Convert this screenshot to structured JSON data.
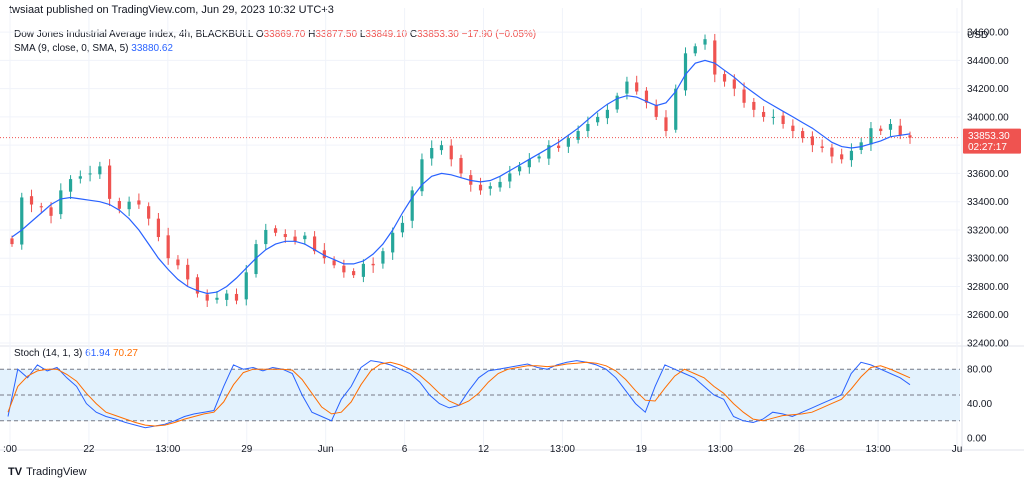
{
  "header": {
    "published_by": "twsiaat published on TradingView.com, Jun 29, 2023 10:32 UTC+3"
  },
  "legend": {
    "symbol": "Dow Jones Industrial Average Index, 4h, BLACKBULL",
    "o_label": "O",
    "o": "33869.70",
    "h_label": "H",
    "h": "33877.50",
    "l_label": "L",
    "l": "33849.10",
    "c_label": "C",
    "c": "33853.30",
    "change": "−17.90 (−0.05%)",
    "sma_label": "SMA (9, close, 0, SMA, 5)",
    "sma_value": "33880.62"
  },
  "price_badge": {
    "price": "33853.30",
    "countdown": "02:27:17"
  },
  "stoch_legend": {
    "label": "Stoch (14, 1, 3)",
    "k": "61.94",
    "d": "70.27"
  },
  "footer": {
    "brand": "TradingView"
  },
  "colors": {
    "up": "#26a69a",
    "down": "#ef5350",
    "sma": "#2962ff",
    "stoch_k": "#2962ff",
    "stoch_d": "#ff6d00",
    "band_fill": "#e3f2fd"
  },
  "chart_data": [
    {
      "type": "candlestick",
      "title": "",
      "currency": "USD",
      "y_ticks": [
        "34600.00",
        "34400.00",
        "34200.00",
        "34000.00",
        "33800.00",
        "33600.00",
        "33400.00",
        "33200.00",
        "33000.00",
        "32800.00",
        "32600.00",
        "32400.00"
      ],
      "ylim": [
        32400,
        34700
      ],
      "x_ticks": [
        ":00",
        "22",
        "13:00",
        "29",
        "Jun",
        "6",
        "12",
        "13:00",
        "19",
        "13:00",
        "26",
        "13:00",
        "Ju"
      ],
      "close_path": [
        33100,
        33430,
        33380,
        33360,
        33300,
        33480,
        33560,
        33580,
        33600,
        33650,
        33420,
        33350,
        33400,
        33380,
        33280,
        33150,
        33000,
        32950,
        32850,
        32750,
        32700,
        32720,
        32750,
        32700,
        32900,
        33100,
        33200,
        33180,
        33150,
        33120,
        33160,
        33050,
        33000,
        32950,
        32900,
        32880,
        32960,
        32950,
        33050,
        33180,
        33250,
        33480,
        33700,
        33780,
        33800,
        33700,
        33600,
        33520,
        33480,
        33510,
        33540,
        33600,
        33650,
        33700,
        33720,
        33800,
        33780,
        33850,
        33900,
        33950,
        34000,
        34050,
        34150,
        34250,
        34180,
        34100,
        34000,
        33900,
        34200,
        34450,
        34500,
        34550,
        34300,
        34250,
        34200,
        34100,
        34050,
        34000,
        34000,
        33950,
        33900,
        33850,
        33800,
        33780,
        33720,
        33700,
        33760,
        33820,
        33920,
        33900,
        33950,
        33870,
        33853
      ],
      "sma_path": [
        33150,
        33200,
        33260,
        33320,
        33380,
        33420,
        33430,
        33420,
        33410,
        33400,
        33380,
        33340,
        33280,
        33200,
        33100,
        33000,
        32920,
        32850,
        32800,
        32770,
        32750,
        32760,
        32800,
        32860,
        32930,
        33000,
        33060,
        33100,
        33120,
        33120,
        33100,
        33060,
        33020,
        32990,
        32960,
        32960,
        32980,
        33030,
        33100,
        33200,
        33320,
        33430,
        33520,
        33580,
        33600,
        33590,
        33570,
        33550,
        33540,
        33550,
        33580,
        33620,
        33660,
        33700,
        33740,
        33780,
        33820,
        33870,
        33920,
        33980,
        34040,
        34090,
        34130,
        34150,
        34140,
        34110,
        34080,
        34100,
        34180,
        34300,
        34380,
        34400,
        34380,
        34330,
        34280,
        34220,
        34170,
        34120,
        34080,
        34040,
        34000,
        33960,
        33920,
        33870,
        33820,
        33790,
        33780,
        33790,
        33810,
        33830,
        33860,
        33870,
        33880
      ],
      "last_price": 33853.3,
      "last_countdown": "02:27:17"
    },
    {
      "type": "line",
      "title": "Stoch (14, 1, 3)",
      "ylim": [
        0,
        100
      ],
      "y_ticks": [
        "80.00",
        "40.00",
        "0.00"
      ],
      "bands": [
        80,
        50,
        20
      ],
      "series": [
        {
          "name": "61.94",
          "values": [
            25,
            80,
            70,
            85,
            78,
            82,
            70,
            60,
            40,
            30,
            25,
            22,
            18,
            15,
            12,
            14,
            16,
            20,
            25,
            28,
            30,
            32,
            60,
            85,
            80,
            82,
            78,
            82,
            80,
            75,
            50,
            30,
            25,
            20,
            45,
            60,
            82,
            90,
            88,
            85,
            80,
            75,
            65,
            50,
            40,
            35,
            38,
            55,
            70,
            78,
            80,
            82,
            84,
            86,
            82,
            80,
            85,
            88,
            90,
            88,
            85,
            80,
            70,
            55,
            40,
            30,
            60,
            85,
            80,
            75,
            70,
            60,
            50,
            45,
            25,
            20,
            18,
            22,
            30,
            28,
            25,
            30,
            35,
            40,
            45,
            50,
            75,
            88,
            85,
            80,
            75,
            70,
            62
          ]
        },
        {
          "name": "70.27",
          "values": [
            30,
            60,
            72,
            78,
            80,
            80,
            74,
            66,
            52,
            40,
            30,
            26,
            22,
            18,
            15,
            14,
            15,
            18,
            22,
            25,
            28,
            30,
            42,
            62,
            76,
            80,
            80,
            80,
            80,
            79,
            68,
            52,
            36,
            28,
            30,
            42,
            62,
            78,
            86,
            88,
            85,
            80,
            73,
            63,
            52,
            43,
            38,
            43,
            52,
            65,
            75,
            80,
            82,
            84,
            84,
            83,
            84,
            86,
            87,
            88,
            87,
            84,
            78,
            68,
            55,
            44,
            43,
            58,
            72,
            80,
            75,
            70,
            60,
            52,
            40,
            30,
            22,
            20,
            23,
            26,
            27,
            28,
            30,
            35,
            40,
            45,
            57,
            71,
            82,
            84,
            80,
            75,
            70
          ]
        }
      ]
    }
  ]
}
